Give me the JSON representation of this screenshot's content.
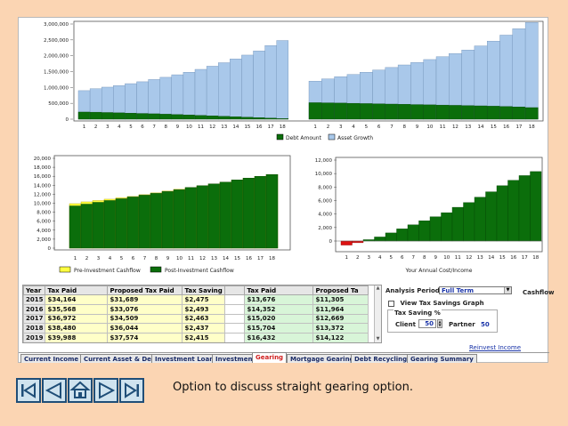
{
  "charts": {
    "asset_growth": {
      "type": "bar",
      "y_ticks": [
        "3,000,000",
        "2,500,000",
        "2,000,000",
        "1,500,000",
        "1,000,000",
        "500,000",
        "0"
      ],
      "x_labels": [
        "1",
        "2",
        "3",
        "4",
        "5",
        "6",
        "7",
        "8",
        "9",
        "10",
        "11",
        "12",
        "13",
        "14",
        "15",
        "16",
        "17",
        "18"
      ],
      "legend": [
        "Debt Amount",
        "Asset Growth"
      ]
    },
    "cashflow": {
      "type": "bar",
      "y_ticks": [
        "20,000",
        "18,000",
        "16,000",
        "14,000",
        "12,000",
        "10,000",
        "8,000",
        "6,000",
        "4,000",
        "2,000",
        "0"
      ],
      "x_labels": [
        "1",
        "2",
        "3",
        "4",
        "5",
        "6",
        "7",
        "8",
        "9",
        "10",
        "11",
        "12",
        "13",
        "14",
        "15",
        "16",
        "17",
        "18"
      ],
      "legend": [
        "Pre-Investment Cashflow",
        "Post-Investment Cashflow"
      ]
    },
    "annual_cost": {
      "type": "bar",
      "y_ticks": [
        "12,000",
        "10,000",
        "8,000",
        "6,000",
        "4,000",
        "2,000",
        "0"
      ],
      "x_labels": [
        "1",
        "2",
        "3",
        "4",
        "5",
        "6",
        "7",
        "8",
        "9",
        "10",
        "11",
        "12",
        "13",
        "14",
        "15",
        "16",
        "17",
        "18"
      ],
      "xlabel": "Your Annual Cost/Income"
    }
  },
  "chart_data": [
    {
      "type": "bar",
      "panel": "left",
      "categories": [
        1,
        2,
        3,
        4,
        5,
        6,
        7,
        8,
        9,
        10,
        11,
        12,
        13,
        14,
        15,
        16,
        17,
        18
      ],
      "ylim": [
        0,
        3000000
      ],
      "series": [
        {
          "name": "Debt Amount",
          "color": "#0b6e0b",
          "values": [
            225000,
            220000,
            210000,
            200000,
            190000,
            180000,
            170000,
            158000,
            145000,
            132000,
            118000,
            104000,
            90000,
            76000,
            62000,
            48000,
            33000,
            18000
          ]
        },
        {
          "name": "Asset Growth",
          "color": "#a9c8ea",
          "values": [
            900000,
            960000,
            1010000,
            1060000,
            1120000,
            1180000,
            1250000,
            1320000,
            1400000,
            1480000,
            1570000,
            1670000,
            1780000,
            1900000,
            2020000,
            2150000,
            2320000,
            2480000
          ]
        }
      ]
    },
    {
      "type": "bar",
      "panel": "right",
      "categories": [
        1,
        2,
        3,
        4,
        5,
        6,
        7,
        8,
        9,
        10,
        11,
        12,
        13,
        14,
        15,
        16,
        17,
        18
      ],
      "ylim": [
        0,
        3000000
      ],
      "series": [
        {
          "name": "Debt Amount",
          "color": "#0b6e0b",
          "values": [
            520000,
            515000,
            508000,
            500000,
            492000,
            484000,
            476000,
            468000,
            460000,
            452000,
            444000,
            436000,
            428000,
            420000,
            410000,
            400000,
            385000,
            365000
          ]
        },
        {
          "name": "Asset Growth",
          "color": "#a9c8ea",
          "values": [
            1200000,
            1270000,
            1340000,
            1410000,
            1480000,
            1550000,
            1630000,
            1710000,
            1790000,
            1880000,
            1970000,
            2070000,
            2180000,
            2310000,
            2460000,
            2650000,
            2850000,
            3050000
          ]
        }
      ]
    },
    {
      "type": "bar",
      "categories": [
        1,
        2,
        3,
        4,
        5,
        6,
        7,
        8,
        9,
        10,
        11,
        12,
        13,
        14,
        15,
        16,
        17,
        18
      ],
      "ylim": [
        0,
        20000
      ],
      "series": [
        {
          "name": "Pre-Investment Cashflow",
          "color": "#ffff40",
          "values": [
            9900,
            10300,
            10600,
            10900,
            11200,
            11500,
            11900,
            12300,
            12700,
            13100,
            13500,
            13900,
            14300,
            14700,
            15200,
            15600,
            16000,
            16400
          ]
        },
        {
          "name": "Post-Investment Cashflow",
          "color": "#0b6e0b",
          "values": [
            9400,
            9800,
            10200,
            10600,
            11000,
            11400,
            11800,
            12200,
            12600,
            13000,
            13500,
            13900,
            14300,
            14700,
            15200,
            15600,
            16000,
            16400
          ]
        }
      ]
    },
    {
      "type": "bar",
      "categories": [
        1,
        2,
        3,
        4,
        5,
        6,
        7,
        8,
        9,
        10,
        11,
        12,
        13,
        14,
        15,
        16,
        17,
        18
      ],
      "ylim": [
        -2000,
        12000
      ],
      "xlabel": "Your Annual Cost/Income",
      "series": [
        {
          "name": "Your Annual Cost/Income",
          "color": "#0b6e0b",
          "negative_color": "#dd1111",
          "values": [
            -600,
            -250,
            200,
            600,
            1200,
            1800,
            2400,
            3000,
            3600,
            4200,
            5000,
            5700,
            6500,
            7300,
            8200,
            9000,
            9700,
            10300
          ]
        }
      ]
    }
  ],
  "table": {
    "headers": [
      "Year",
      "Tax Paid",
      "Proposed Tax Paid",
      "Tax Saving",
      "",
      "Tax Paid",
      "Proposed Ta"
    ],
    "rows": [
      [
        "2015",
        "$34,164",
        "$31,689",
        "$2,475",
        "",
        "$13,676",
        "$11,305"
      ],
      [
        "2016",
        "$35,568",
        "$33,076",
        "$2,493",
        "",
        "$14,352",
        "$11,964"
      ],
      [
        "2017",
        "$36,972",
        "$34,509",
        "$2,463",
        "",
        "$15,020",
        "$12,669"
      ],
      [
        "2018",
        "$38,480",
        "$36,044",
        "$2,437",
        "",
        "$15,704",
        "$13,372"
      ],
      [
        "2019",
        "$39,988",
        "$37,574",
        "$2,415",
        "",
        "$16,432",
        "$14,122"
      ]
    ]
  },
  "panel": {
    "analysis_label": "Analysis Period",
    "analysis_value": "Full Term",
    "cashflow_label": "Cashflow",
    "view_tax_label": "View Tax Savings Graph",
    "tax_saving_label": "Tax Saving %",
    "client_label": "Client",
    "client_value": "50",
    "partner_label": "Partner",
    "partner_value": "50",
    "reinvest_link": "Reinvest Income"
  },
  "tabs": [
    "Current Income",
    "Current Asset & Debt",
    "Investment Loan",
    "Investment",
    "Gearing",
    "Mortgage Gearing",
    "Debt Recycling",
    "Gearing Summary"
  ],
  "active_tab": "Gearing",
  "caption": "Option to discuss straight gearing option.",
  "nav": {
    "buttons": [
      "first-icon",
      "previous-icon",
      "home-icon",
      "next-icon",
      "last-icon"
    ]
  },
  "colors": {
    "background": "#fbd5b3",
    "green": "#0b6e0b",
    "blue_bar": "#a9c8ea",
    "yellow": "#ffff40",
    "red": "#dd1111",
    "nav_border": "#1f4e78"
  }
}
